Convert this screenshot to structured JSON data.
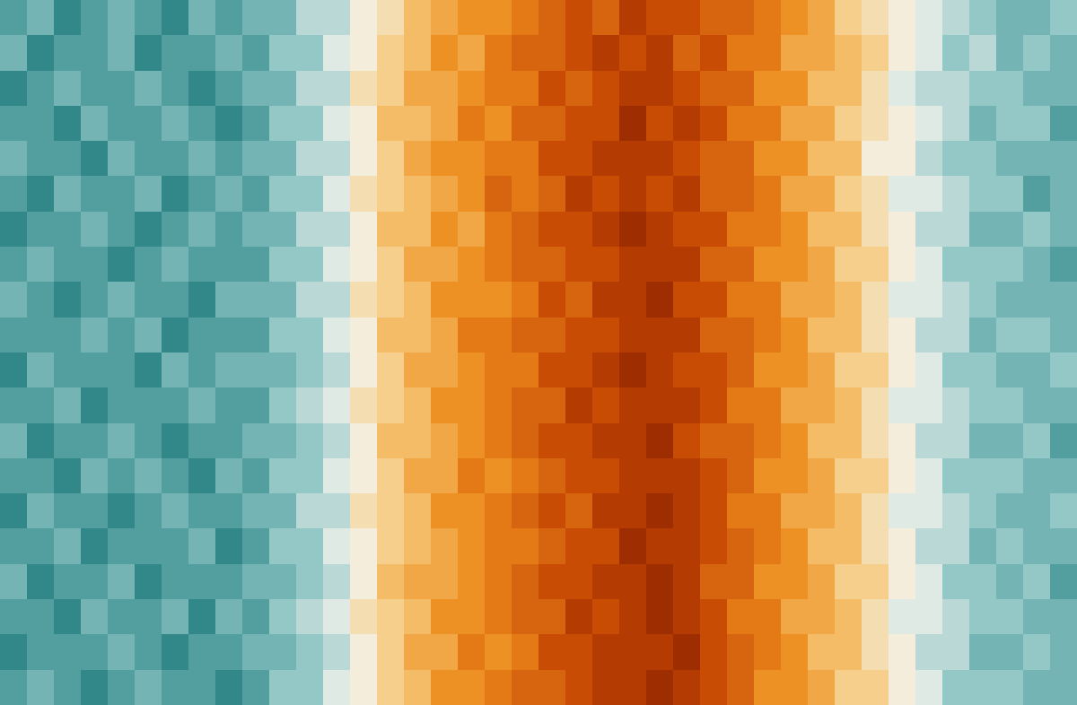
{
  "chart_data": {
    "type": "heatmap",
    "tick_labels": false,
    "zlim": [
      -10,
      10
    ],
    "cells": [
      [
        -6,
        -5,
        -7,
        -6,
        -5,
        -6,
        -7,
        -5,
        -6,
        -5,
        -5,
        -3,
        -3,
        -1,
        0,
        2,
        3,
        4,
        4,
        5,
        6,
        7,
        6,
        8,
        7,
        7,
        6,
        6,
        5,
        4,
        3,
        1,
        0,
        -1,
        -2,
        -3,
        -4,
        -5,
        -5,
        -4
      ],
      [
        -5,
        -7,
        -6,
        -6,
        -5,
        -7,
        -6,
        -6,
        -5,
        -6,
        -4,
        -4,
        -2,
        -1,
        1,
        2,
        4,
        3,
        5,
        6,
        6,
        7,
        8,
        7,
        8,
        6,
        7,
        5,
        5,
        3,
        3,
        2,
        1,
        -1,
        -2,
        -4,
        -3,
        -5,
        -4,
        -5
      ],
      [
        -7,
        -6,
        -5,
        -6,
        -6,
        -5,
        -6,
        -7,
        -6,
        -5,
        -5,
        -3,
        -3,
        0,
        1,
        3,
        3,
        4,
        5,
        5,
        7,
        6,
        7,
        8,
        8,
        7,
        6,
        6,
        4,
        4,
        2,
        2,
        0,
        -2,
        -3,
        -3,
        -4,
        -4,
        -5,
        -5
      ],
      [
        -6,
        -6,
        -7,
        -5,
        -6,
        -6,
        -5,
        -6,
        -7,
        -6,
        -4,
        -4,
        -2,
        -1,
        2,
        2,
        3,
        5,
        4,
        6,
        6,
        7,
        7,
        9,
        7,
        8,
        7,
        5,
        5,
        3,
        3,
        1,
        0,
        -1,
        -2,
        -3,
        -5,
        -4,
        -4,
        -6
      ],
      [
        -5,
        -6,
        -6,
        -7,
        -5,
        -6,
        -6,
        -5,
        -6,
        -5,
        -5,
        -3,
        -3,
        -1,
        1,
        3,
        4,
        4,
        5,
        5,
        7,
        7,
        8,
        8,
        8,
        7,
        6,
        6,
        4,
        4,
        2,
        2,
        -1,
        -1,
        -3,
        -4,
        -4,
        -5,
        -5,
        -5
      ],
      [
        -6,
        -7,
        -5,
        -6,
        -6,
        -5,
        -7,
        -6,
        -5,
        -6,
        -4,
        -4,
        -2,
        0,
        1,
        2,
        3,
        4,
        6,
        5,
        6,
        8,
        7,
        8,
        7,
        8,
        6,
        6,
        5,
        3,
        3,
        1,
        0,
        -2,
        -2,
        -3,
        -4,
        -4,
        -6,
        -5
      ],
      [
        -7,
        -6,
        -6,
        -5,
        -6,
        -7,
        -6,
        -5,
        -6,
        -5,
        -5,
        -3,
        -3,
        -1,
        2,
        2,
        4,
        3,
        5,
        6,
        7,
        7,
        8,
        9,
        8,
        7,
        7,
        5,
        5,
        4,
        2,
        2,
        0,
        -1,
        -3,
        -3,
        -5,
        -5,
        -4,
        -5
      ],
      [
        -6,
        -5,
        -6,
        -6,
        -7,
        -6,
        -5,
        -6,
        -6,
        -6,
        -4,
        -4,
        -2,
        -1,
        1,
        3,
        3,
        4,
        5,
        6,
        6,
        7,
        7,
        8,
        8,
        8,
        6,
        6,
        4,
        4,
        3,
        1,
        1,
        -1,
        -2,
        -4,
        -4,
        -4,
        -5,
        -6
      ],
      [
        -5,
        -6,
        -7,
        -6,
        -5,
        -6,
        -6,
        -7,
        -5,
        -5,
        -5,
        -3,
        -3,
        0,
        1,
        2,
        4,
        4,
        4,
        5,
        7,
        6,
        8,
        8,
        9,
        7,
        7,
        5,
        5,
        3,
        3,
        2,
        0,
        -2,
        -2,
        -3,
        -4,
        -5,
        -5,
        -5
      ],
      [
        -6,
        -6,
        -6,
        -5,
        -6,
        -5,
        -7,
        -6,
        -6,
        -6,
        -4,
        -4,
        -2,
        -1,
        2,
        2,
        3,
        5,
        5,
        6,
        6,
        7,
        7,
        8,
        8,
        8,
        6,
        6,
        5,
        4,
        2,
        2,
        0,
        -1,
        -3,
        -3,
        -5,
        -4,
        -4,
        -5
      ],
      [
        -7,
        -5,
        -6,
        -6,
        -6,
        -7,
        -5,
        -6,
        -5,
        -5,
        -5,
        -4,
        -3,
        -1,
        1,
        3,
        3,
        4,
        5,
        5,
        7,
        7,
        8,
        9,
        8,
        7,
        7,
        6,
        4,
        4,
        3,
        1,
        1,
        -1,
        -2,
        -4,
        -4,
        -5,
        -5,
        -4
      ],
      [
        -6,
        -6,
        -5,
        -7,
        -6,
        -6,
        -6,
        -5,
        -6,
        -6,
        -4,
        -3,
        -2,
        0,
        1,
        2,
        4,
        4,
        5,
        6,
        6,
        8,
        7,
        8,
        8,
        8,
        7,
        5,
        5,
        3,
        3,
        2,
        0,
        -2,
        -2,
        -3,
        -4,
        -4,
        -5,
        -5
      ],
      [
        -5,
        -7,
        -6,
        -6,
        -5,
        -6,
        -7,
        -6,
        -6,
        -5,
        -5,
        -4,
        -3,
        -1,
        2,
        2,
        3,
        4,
        5,
        6,
        7,
        7,
        8,
        8,
        9,
        7,
        6,
        6,
        5,
        4,
        2,
        2,
        0,
        -1,
        -3,
        -3,
        -5,
        -5,
        -4,
        -6
      ],
      [
        -6,
        -6,
        -7,
        -5,
        -6,
        -5,
        -6,
        -7,
        -5,
        -6,
        -4,
        -4,
        -2,
        -1,
        1,
        3,
        3,
        5,
        4,
        5,
        6,
        7,
        7,
        8,
        8,
        8,
        7,
        6,
        4,
        4,
        3,
        1,
        1,
        -1,
        -2,
        -4,
        -4,
        -4,
        -5,
        -5
      ],
      [
        -7,
        -5,
        -6,
        -6,
        -7,
        -6,
        -5,
        -6,
        -6,
        -5,
        -5,
        -3,
        -3,
        0,
        1,
        2,
        4,
        4,
        5,
        6,
        7,
        6,
        8,
        8,
        9,
        8,
        7,
        5,
        5,
        3,
        3,
        2,
        0,
        -2,
        -2,
        -3,
        -4,
        -5,
        -5,
        -4
      ],
      [
        -6,
        -6,
        -5,
        -7,
        -6,
        -6,
        -6,
        -5,
        -7,
        -6,
        -4,
        -4,
        -2,
        -1,
        1,
        2,
        3,
        4,
        5,
        5,
        6,
        7,
        7,
        9,
        8,
        8,
        7,
        6,
        5,
        4,
        2,
        2,
        0,
        -1,
        -3,
        -3,
        -5,
        -4,
        -5,
        -5
      ],
      [
        -5,
        -7,
        -6,
        -6,
        -5,
        -7,
        -6,
        -6,
        -6,
        -5,
        -5,
        -4,
        -3,
        -1,
        2,
        3,
        3,
        4,
        5,
        6,
        7,
        7,
        8,
        8,
        9,
        8,
        6,
        6,
        4,
        4,
        3,
        1,
        1,
        -1,
        -2,
        -4,
        -4,
        -5,
        -4,
        -6
      ],
      [
        -6,
        -6,
        -7,
        -5,
        -6,
        -6,
        -5,
        -7,
        -5,
        -6,
        -4,
        -3,
        -2,
        0,
        1,
        2,
        4,
        4,
        5,
        6,
        6,
        8,
        7,
        8,
        9,
        8,
        7,
        5,
        5,
        3,
        3,
        2,
        0,
        -2,
        -2,
        -3,
        -4,
        -4,
        -5,
        -5
      ],
      [
        -7,
        -6,
        -6,
        -6,
        -5,
        -6,
        -7,
        -6,
        -6,
        -5,
        -5,
        -4,
        -3,
        -1,
        1,
        3,
        3,
        5,
        4,
        5,
        7,
        7,
        8,
        8,
        8,
        9,
        7,
        6,
        5,
        4,
        2,
        2,
        0,
        -1,
        -3,
        -3,
        -5,
        -5,
        -4,
        -5
      ],
      [
        -6,
        -5,
        -6,
        -7,
        -6,
        -5,
        -6,
        -6,
        -7,
        -6,
        -4,
        -4,
        -2,
        -1,
        1,
        2,
        4,
        4,
        5,
        6,
        6,
        7,
        8,
        8,
        9,
        8,
        7,
        6,
        4,
        4,
        3,
        1,
        1,
        -1,
        -2,
        -4,
        -4,
        -4,
        -5,
        -5
      ]
    ]
  }
}
